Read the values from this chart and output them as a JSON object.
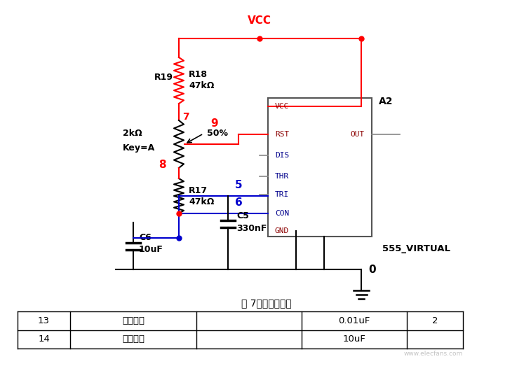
{
  "bg_color": "#ffffff",
  "title": "图 7秒脉冲发生器",
  "colors": {
    "red": "#ff0000",
    "blue": "#0000cd",
    "black": "#000000",
    "gray": "#888888",
    "dark_brown": "#8B4513",
    "pin_red": "#8B0000",
    "pin_blue": "#00008B"
  },
  "vcc_label": "VCC",
  "a2_label": "A2",
  "label_555": "555_VIRTUAL",
  "out_label": "OUT",
  "pin_labels": [
    "VCC",
    "RST",
    "DIS",
    "THR",
    "TRI",
    "CON",
    "GND"
  ],
  "component_labels": {
    "R18": "R18",
    "R18_val": "47kΩ",
    "R19": "R19",
    "R17": "R17",
    "R17_val": "47kΩ",
    "C5": "C5",
    "C5_val": "330nF",
    "C6": "C6",
    "C6_val": "10uF",
    "pot": "2kΩ",
    "pot_key": "Key=A",
    "pot_pct": "50%"
  },
  "pin_numbers": {
    "n7": "7",
    "n8": "8",
    "n9": "9",
    "n6": "6",
    "n5": "5",
    "n0": "0"
  },
  "table_rows": [
    [
      "13",
      "瓷片电容",
      "",
      "0.01uF",
      "2"
    ],
    [
      "14",
      "点解电容",
      "",
      "10uF",
      ""
    ]
  ]
}
